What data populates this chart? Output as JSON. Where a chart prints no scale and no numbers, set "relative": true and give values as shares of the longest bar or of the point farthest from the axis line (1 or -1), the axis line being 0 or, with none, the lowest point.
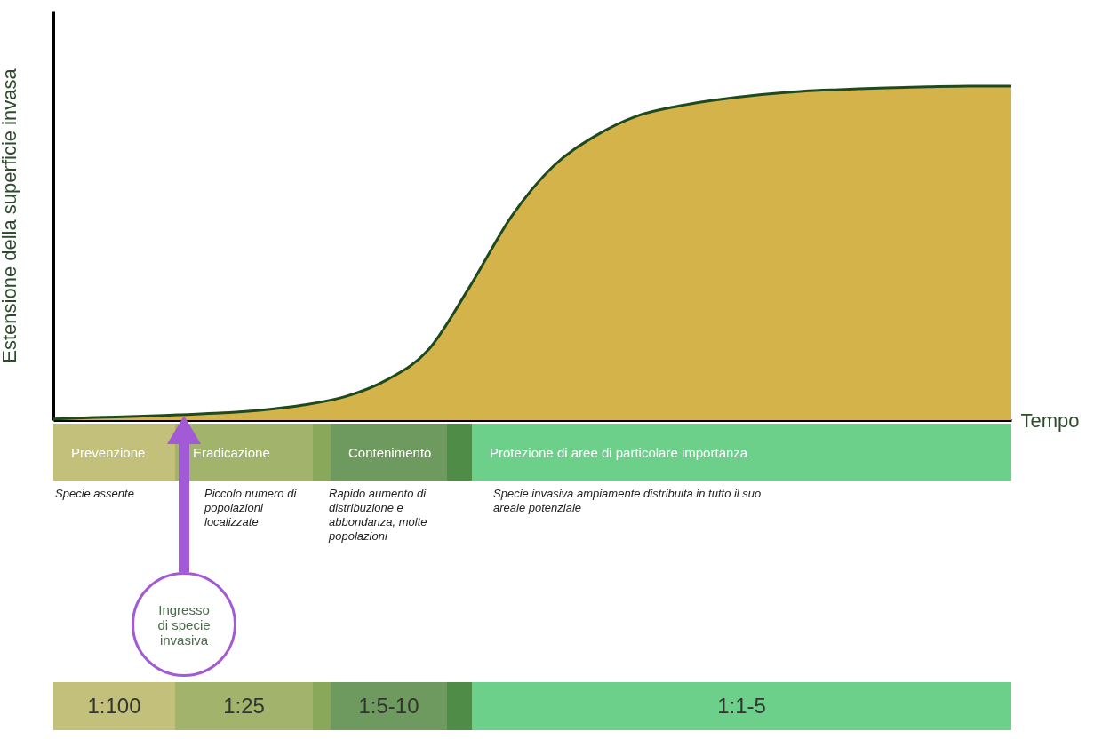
{
  "chart_data": {
    "type": "area",
    "relative": true,
    "xlabel": "Tempo",
    "ylabel": "Estensione della superficie invasa",
    "categories": [
      null,
      null,
      null,
      null,
      null,
      null,
      null,
      null,
      null,
      null,
      null,
      null,
      null,
      null,
      null,
      null,
      null,
      null,
      null,
      null,
      null,
      null,
      null,
      null
    ],
    "series": [
      {
        "color": "#d4b44a",
        "values": [
          0.003,
          0.008,
          0.011,
          0.016,
          0.021,
          0.03,
          0.045,
          0.07,
          0.12,
          0.21,
          0.4,
          0.61,
          0.76,
          0.85,
          0.91,
          0.94,
          0.96,
          0.975,
          0.985,
          0.99,
          0.995,
          0.998,
          1,
          1
        ]
      },
      {
        "type": "line",
        "color": "#1f4a1f",
        "values": [
          0.003,
          0.008,
          0.011,
          0.016,
          0.021,
          0.03,
          0.045,
          0.07,
          0.12,
          0.21,
          0.4,
          0.61,
          0.76,
          0.85,
          0.91,
          0.94,
          0.96,
          0.975,
          0.985,
          0.99,
          0.995,
          0.998,
          1,
          1
        ]
      }
    ],
    "annotations": [
      "Prevenzione",
      "Eradicazione",
      "Contenimento",
      "Protezione di aree di particolare importanza",
      "Specie assente",
      "Piccolo numero di popolazioni localizzate",
      "Rapido aumento di distribuzione e abbondanza, molte popolazioni",
      "Specie invasiva ampiamente distribuita in tutto il suo areale potenziale",
      "Ingresso di specie invasiva",
      "1:100",
      "1:25",
      "1:5-10",
      "1:1-5"
    ]
  }
}
